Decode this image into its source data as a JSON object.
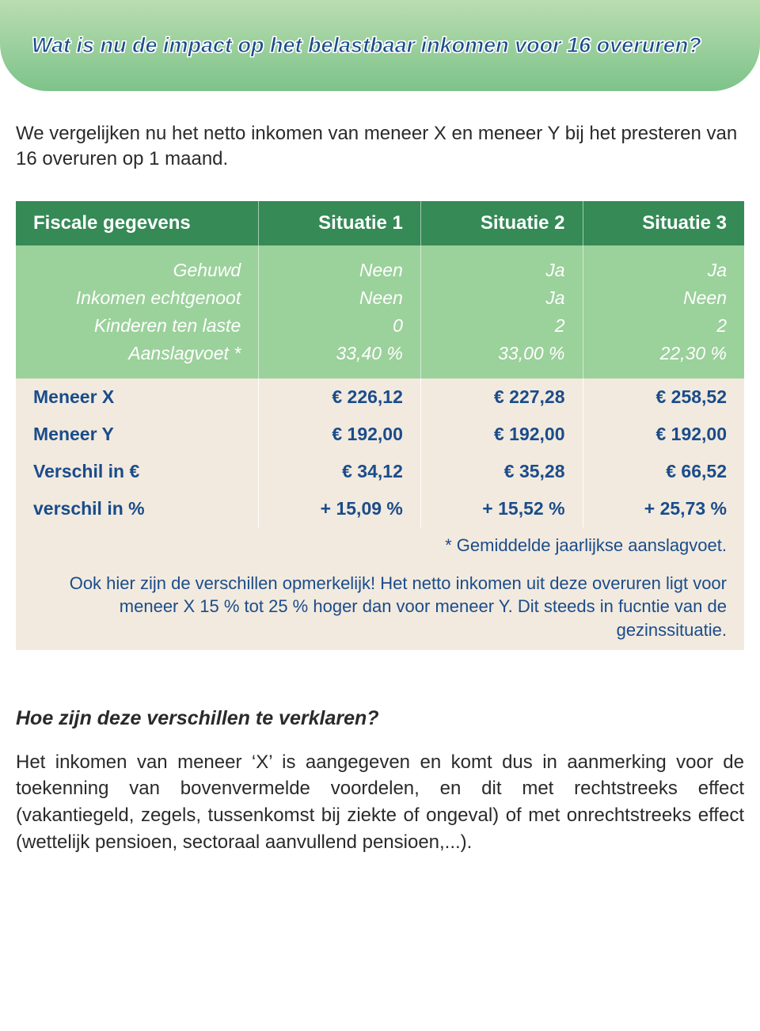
{
  "colors": {
    "banner_grad_top": "#baddb0",
    "banner_grad_bottom": "#7dc38a",
    "banner_text": "#1a4c8a",
    "banner_text_outline": "#ffffff",
    "table_header_bg": "#358a56",
    "table_subheader_bg": "#9bd19b",
    "table_data_bg": "#f2eadf",
    "table_text": "#1a4c8a",
    "body_text": "#2a2a2a"
  },
  "banner": {
    "title": "Wat is nu de impact op het belastbaar inkomen voor 16 overuren?"
  },
  "intro": "We vergelijken nu het netto inkomen van meneer X en meneer Y bij het presteren van 16 overuren op 1 maand.",
  "table": {
    "header": {
      "c0": "Fiscale gegevens",
      "c1": "Situatie 1",
      "c2": "Situatie 2",
      "c3": "Situatie 3"
    },
    "sub_rows": [
      {
        "label": "Gehuwd",
        "c1": "Neen",
        "c2": "Ja",
        "c3": "Ja"
      },
      {
        "label": "Inkomen echtgenoot",
        "c1": "Neen",
        "c2": "Ja",
        "c3": "Neen"
      },
      {
        "label": "Kinderen ten laste",
        "c1": "0",
        "c2": "2",
        "c3": "2"
      },
      {
        "label": "Aanslagvoet *",
        "c1": "33,40 %",
        "c2": "33,00 %",
        "c3": "22,30 %"
      }
    ],
    "data_rows": [
      {
        "label": "Meneer X",
        "c1": "€ 226,12",
        "c2": "€ 227,28",
        "c3": "€ 258,52"
      },
      {
        "label": "Meneer Y",
        "c1": "€ 192,00",
        "c2": "€ 192,00",
        "c3": "€ 192,00"
      },
      {
        "label": "Verschil in €",
        "c1": "€  34,12",
        "c2": "€  35,28",
        "c3": "€  66,52"
      },
      {
        "label": "verschil in %",
        "c1": "+ 15,09 %",
        "c2": "+ 15,52 %",
        "c3": "+ 25,73 %"
      }
    ],
    "footnote": "* Gemiddelde jaarlijkse aanslagvoet.",
    "callout": "Ook hier zijn de verschillen opmerkelijk!\nHet netto inkomen uit deze overuren ligt voor meneer X 15 % tot 25 % hoger dan voor meneer Y. Dit steeds in fucntie van de gezinssituatie."
  },
  "subheading": "Hoe zijn deze verschillen te verklaren?",
  "body": "Het inkomen van meneer ‘X’ is aangegeven en komt dus in aanmerking voor de toekenning van bovenvermelde voordelen, en dit met rechtstreeks effect (vakantiegeld, zegels, tussenkomst bij ziekte of ongeval) of met onrechtstreeks effect (wettelijk pensioen, sectoraal aanvullend pensioen,...)."
}
